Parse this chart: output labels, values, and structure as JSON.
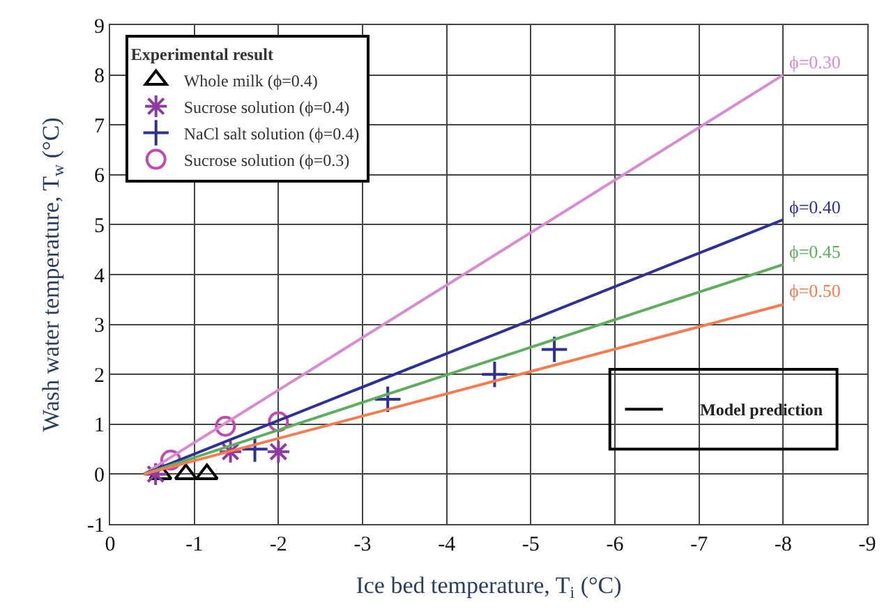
{
  "chart_data": {
    "type": "scatter",
    "xlabel": "Ice bed temperature, T$_{i}$ (°C)",
    "ylabel": "Wash water temperature, T$_{w}$ (°C)",
    "legend_title": "Experimental result",
    "xlim": [
      0,
      -9
    ],
    "ylim": [
      -1,
      9
    ],
    "xticks": [
      0,
      -1,
      -2,
      -3,
      -4,
      -5,
      -6,
      -7,
      -8,
      -9
    ],
    "yticks": [
      -1,
      0,
      1,
      2,
      3,
      4,
      5,
      6,
      7,
      8,
      9
    ],
    "grid": true,
    "legend": "top left",
    "series": [
      {
        "name": "Whole milk (ϕ=0.4)",
        "color": "#000000",
        "marker": "triangle",
        "x": [
          -0.6,
          -0.9,
          -1.15
        ],
        "values": [
          0,
          0,
          0
        ]
      },
      {
        "name": "Sucrose solution (ϕ=0.4)",
        "color": "#8e3a9e",
        "marker": "cross",
        "x": [
          -0.54,
          -1.43,
          -2.0
        ],
        "values": [
          0,
          0.45,
          0.45
        ]
      },
      {
        "name": "NaCl salt solution (ϕ=0.4)",
        "color": "#2e3192",
        "marker": "cross",
        "x": [
          -1.72,
          -3.3,
          -4.57,
          -5.28
        ],
        "values": [
          0.5,
          1.5,
          2.0,
          2.5
        ]
      },
      {
        "name": "Sucrose solution (ϕ=0.3)",
        "color": "#c04ab0",
        "marker": "circle",
        "x": [
          -0.72,
          -1.37,
          -2.0
        ],
        "values": [
          0.28,
          0.96,
          1.05
        ]
      },
      {
        "name": "ϕ=0.30",
        "type": "line",
        "color": "#d98bd0",
        "x": [
          -0.4,
          -8
        ],
        "values": [
          0,
          8.0
        ]
      },
      {
        "name": "ϕ=0.40",
        "type": "line",
        "color": "#2e3192",
        "x": [
          -0.4,
          -8
        ],
        "values": [
          0,
          5.1
        ]
      },
      {
        "name": "ϕ=0.45",
        "type": "line",
        "color": "#5fae5f",
        "x": [
          -0.4,
          -8
        ],
        "values": [
          0,
          4.2
        ]
      },
      {
        "name": "ϕ=0.50",
        "type": "line",
        "color": "#f47c50",
        "x": [
          -0.4,
          -8
        ],
        "values": [
          0,
          3.4
        ]
      }
    ],
    "annotations": [
      "Model prediction"
    ]
  }
}
